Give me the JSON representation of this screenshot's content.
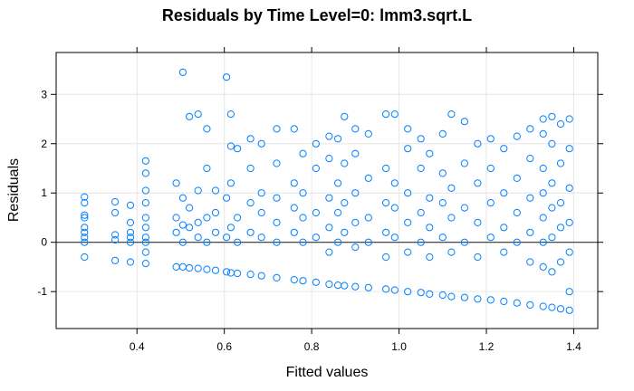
{
  "chart_data": {
    "type": "scatter",
    "title": "Residuals by Time Level=0: lmm3.sqrt.L",
    "xlabel": "Fitted values",
    "ylabel": "Residuals",
    "xlim": [
      0.215,
      1.455
    ],
    "ylim": [
      -1.75,
      3.85
    ],
    "xticks": [
      0.4,
      0.6,
      0.8,
      1.0,
      1.2,
      1.4
    ],
    "xtick_labels": [
      "0.4",
      "0.6",
      "0.8",
      "1.0",
      "1.2",
      "1.4"
    ],
    "yticks": [
      -1,
      0,
      1,
      2,
      3
    ],
    "ytick_labels": [
      "-1",
      "0",
      "1",
      "2",
      "3"
    ],
    "reference_line": 0,
    "grid": true,
    "point_style": {
      "marker": "open-circle",
      "color": "#0080ff"
    },
    "colors": {
      "points": "#0080ff",
      "grid": "#e6e6e6",
      "zero_line": "#333333",
      "frame": "#000000"
    },
    "points": [
      [
        0.28,
        -0.3
      ],
      [
        0.28,
        0.0
      ],
      [
        0.28,
        0.1
      ],
      [
        0.28,
        0.2
      ],
      [
        0.28,
        0.3
      ],
      [
        0.28,
        0.5
      ],
      [
        0.28,
        0.55
      ],
      [
        0.28,
        0.8
      ],
      [
        0.28,
        0.92
      ],
      [
        0.35,
        -0.37
      ],
      [
        0.35,
        0.05
      ],
      [
        0.35,
        0.15
      ],
      [
        0.35,
        0.6
      ],
      [
        0.35,
        0.82
      ],
      [
        0.385,
        -0.4
      ],
      [
        0.385,
        0.0
      ],
      [
        0.385,
        0.1
      ],
      [
        0.385,
        0.2
      ],
      [
        0.385,
        0.4
      ],
      [
        0.385,
        0.75
      ],
      [
        0.42,
        -0.43
      ],
      [
        0.42,
        -0.2
      ],
      [
        0.42,
        0.0
      ],
      [
        0.42,
        0.1
      ],
      [
        0.42,
        0.3
      ],
      [
        0.42,
        0.5
      ],
      [
        0.42,
        0.8
      ],
      [
        0.42,
        1.05
      ],
      [
        0.42,
        1.4
      ],
      [
        0.42,
        1.65
      ],
      [
        0.49,
        -0.5
      ],
      [
        0.49,
        0.2
      ],
      [
        0.49,
        0.5
      ],
      [
        0.49,
        1.2
      ],
      [
        0.505,
        -0.5
      ],
      [
        0.505,
        0.0
      ],
      [
        0.505,
        0.35
      ],
      [
        0.505,
        0.9
      ],
      [
        0.505,
        3.45
      ],
      [
        0.52,
        -0.52
      ],
      [
        0.52,
        0.3
      ],
      [
        0.52,
        0.7
      ],
      [
        0.52,
        2.55
      ],
      [
        0.54,
        -0.53
      ],
      [
        0.54,
        0.1
      ],
      [
        0.54,
        0.4
      ],
      [
        0.54,
        1.05
      ],
      [
        0.54,
        2.6
      ],
      [
        0.56,
        -0.55
      ],
      [
        0.56,
        0.0
      ],
      [
        0.56,
        0.5
      ],
      [
        0.56,
        1.5
      ],
      [
        0.56,
        2.3
      ],
      [
        0.58,
        -0.57
      ],
      [
        0.58,
        0.2
      ],
      [
        0.58,
        0.6
      ],
      [
        0.58,
        1.05
      ],
      [
        0.605,
        -0.6
      ],
      [
        0.605,
        0.1
      ],
      [
        0.605,
        0.9
      ],
      [
        0.605,
        3.35
      ],
      [
        0.615,
        -0.62
      ],
      [
        0.615,
        0.3
      ],
      [
        0.615,
        1.2
      ],
      [
        0.615,
        1.95
      ],
      [
        0.615,
        2.6
      ],
      [
        0.63,
        -0.63
      ],
      [
        0.63,
        0.0
      ],
      [
        0.63,
        0.5
      ],
      [
        0.63,
        1.9
      ],
      [
        0.66,
        -0.65
      ],
      [
        0.66,
        0.2
      ],
      [
        0.66,
        0.8
      ],
      [
        0.66,
        1.5
      ],
      [
        0.66,
        2.1
      ],
      [
        0.685,
        -0.68
      ],
      [
        0.685,
        0.1
      ],
      [
        0.685,
        0.6
      ],
      [
        0.685,
        1.0
      ],
      [
        0.685,
        2.0
      ],
      [
        0.72,
        -0.72
      ],
      [
        0.72,
        0.0
      ],
      [
        0.72,
        0.4
      ],
      [
        0.72,
        0.9
      ],
      [
        0.72,
        1.6
      ],
      [
        0.72,
        2.3
      ],
      [
        0.76,
        -0.76
      ],
      [
        0.76,
        0.2
      ],
      [
        0.76,
        0.7
      ],
      [
        0.76,
        1.2
      ],
      [
        0.76,
        2.3
      ],
      [
        0.78,
        -0.78
      ],
      [
        0.78,
        0.0
      ],
      [
        0.78,
        0.5
      ],
      [
        0.78,
        1.0
      ],
      [
        0.78,
        1.8
      ],
      [
        0.81,
        -0.81
      ],
      [
        0.81,
        0.1
      ],
      [
        0.81,
        0.6
      ],
      [
        0.81,
        1.5
      ],
      [
        0.81,
        2.0
      ],
      [
        0.84,
        -0.85
      ],
      [
        0.84,
        -0.2
      ],
      [
        0.84,
        0.3
      ],
      [
        0.84,
        0.9
      ],
      [
        0.84,
        1.7
      ],
      [
        0.84,
        2.15
      ],
      [
        0.86,
        -0.87
      ],
      [
        0.86,
        0.0
      ],
      [
        0.86,
        0.6
      ],
      [
        0.86,
        1.2
      ],
      [
        0.86,
        2.1
      ],
      [
        0.875,
        -0.88
      ],
      [
        0.875,
        0.2
      ],
      [
        0.875,
        0.8
      ],
      [
        0.875,
        1.6
      ],
      [
        0.875,
        2.55
      ],
      [
        0.9,
        -0.9
      ],
      [
        0.9,
        -0.1
      ],
      [
        0.9,
        0.4
      ],
      [
        0.9,
        1.0
      ],
      [
        0.9,
        1.8
      ],
      [
        0.9,
        2.3
      ],
      [
        0.93,
        -0.92
      ],
      [
        0.93,
        0.0
      ],
      [
        0.93,
        0.5
      ],
      [
        0.93,
        1.3
      ],
      [
        0.93,
        2.2
      ],
      [
        0.97,
        -0.95
      ],
      [
        0.97,
        -0.3
      ],
      [
        0.97,
        0.2
      ],
      [
        0.97,
        0.8
      ],
      [
        0.97,
        1.5
      ],
      [
        0.97,
        2.6
      ],
      [
        0.99,
        -0.97
      ],
      [
        0.99,
        0.1
      ],
      [
        0.99,
        0.7
      ],
      [
        0.99,
        1.2
      ],
      [
        0.99,
        2.6
      ],
      [
        1.02,
        -1.0
      ],
      [
        1.02,
        -0.2
      ],
      [
        1.02,
        0.4
      ],
      [
        1.02,
        1.0
      ],
      [
        1.02,
        1.9
      ],
      [
        1.02,
        2.3
      ],
      [
        1.05,
        -1.02
      ],
      [
        1.05,
        0.0
      ],
      [
        1.05,
        0.6
      ],
      [
        1.05,
        1.5
      ],
      [
        1.05,
        2.1
      ],
      [
        1.07,
        -1.05
      ],
      [
        1.07,
        -0.3
      ],
      [
        1.07,
        0.3
      ],
      [
        1.07,
        0.9
      ],
      [
        1.07,
        1.8
      ],
      [
        1.1,
        -1.07
      ],
      [
        1.1,
        0.1
      ],
      [
        1.1,
        0.8
      ],
      [
        1.1,
        1.4
      ],
      [
        1.1,
        2.2
      ],
      [
        1.12,
        -1.1
      ],
      [
        1.12,
        -0.2
      ],
      [
        1.12,
        0.5
      ],
      [
        1.12,
        1.1
      ],
      [
        1.12,
        2.6
      ],
      [
        1.15,
        -1.12
      ],
      [
        1.15,
        0.0
      ],
      [
        1.15,
        0.7
      ],
      [
        1.15,
        1.6
      ],
      [
        1.15,
        2.45
      ],
      [
        1.18,
        -1.15
      ],
      [
        1.18,
        -0.3
      ],
      [
        1.18,
        0.4
      ],
      [
        1.18,
        1.2
      ],
      [
        1.18,
        2.0
      ],
      [
        1.21,
        -1.17
      ],
      [
        1.21,
        0.1
      ],
      [
        1.21,
        0.8
      ],
      [
        1.21,
        1.5
      ],
      [
        1.21,
        2.1
      ],
      [
        1.24,
        -1.2
      ],
      [
        1.24,
        -0.2
      ],
      [
        1.24,
        0.3
      ],
      [
        1.24,
        1.0
      ],
      [
        1.24,
        1.9
      ],
      [
        1.27,
        -1.23
      ],
      [
        1.27,
        0.0
      ],
      [
        1.27,
        0.6
      ],
      [
        1.27,
        1.3
      ],
      [
        1.27,
        2.15
      ],
      [
        1.3,
        -1.27
      ],
      [
        1.3,
        -0.4
      ],
      [
        1.3,
        0.2
      ],
      [
        1.3,
        0.9
      ],
      [
        1.3,
        1.7
      ],
      [
        1.3,
        2.3
      ],
      [
        1.33,
        -1.3
      ],
      [
        1.33,
        -0.5
      ],
      [
        1.33,
        0.0
      ],
      [
        1.33,
        0.5
      ],
      [
        1.33,
        1.0
      ],
      [
        1.33,
        1.5
      ],
      [
        1.33,
        2.2
      ],
      [
        1.33,
        2.5
      ],
      [
        1.35,
        -1.32
      ],
      [
        1.35,
        -0.6
      ],
      [
        1.35,
        0.1
      ],
      [
        1.35,
        0.7
      ],
      [
        1.35,
        1.2
      ],
      [
        1.35,
        2.0
      ],
      [
        1.35,
        2.55
      ],
      [
        1.37,
        -1.35
      ],
      [
        1.37,
        -0.4
      ],
      [
        1.37,
        0.3
      ],
      [
        1.37,
        0.8
      ],
      [
        1.37,
        1.6
      ],
      [
        1.37,
        2.4
      ],
      [
        1.39,
        -1.38
      ],
      [
        1.39,
        -1.0
      ],
      [
        1.39,
        -0.2
      ],
      [
        1.39,
        0.4
      ],
      [
        1.39,
        1.1
      ],
      [
        1.39,
        1.9
      ],
      [
        1.39,
        2.5
      ]
    ]
  }
}
